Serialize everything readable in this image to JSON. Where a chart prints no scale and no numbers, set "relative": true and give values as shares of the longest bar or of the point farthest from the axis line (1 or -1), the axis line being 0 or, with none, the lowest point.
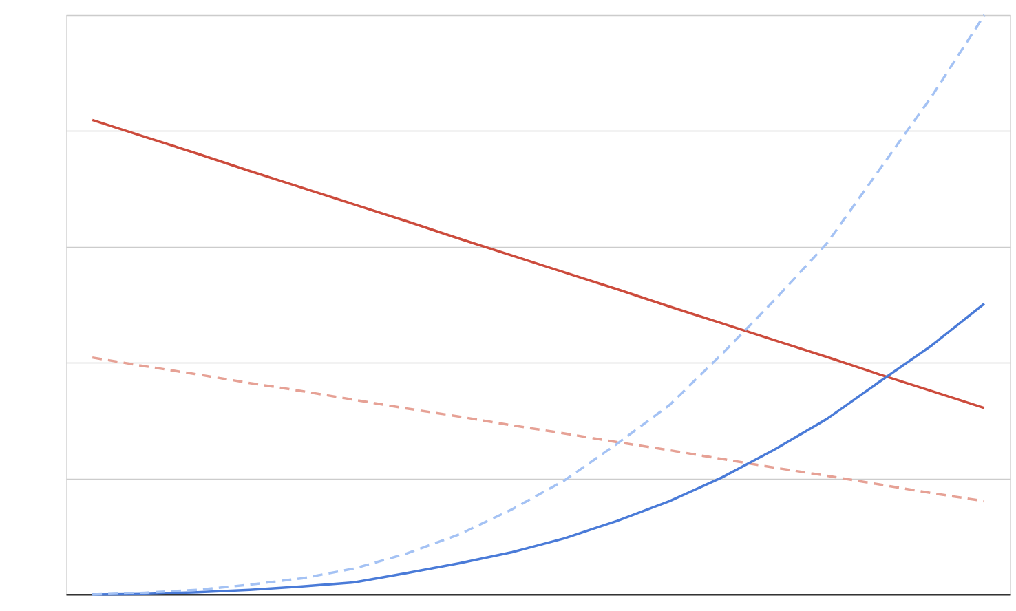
{
  "chart_data": {
    "type": "line",
    "relative": true,
    "grid": "y",
    "legend": false,
    "marker": "none",
    "categories": [
      null,
      null,
      null,
      null,
      null,
      null,
      null,
      null,
      null,
      null,
      null,
      null,
      null,
      null,
      null,
      null,
      null,
      null
    ],
    "series": [
      {
        "color": "#cc4b3c",
        "line_style": "solid",
        "values": [
          0.819,
          0.79,
          0.761,
          0.731,
          0.702,
          0.673,
          0.644,
          0.614,
          0.585,
          0.556,
          0.527,
          0.497,
          0.468,
          0.439,
          0.41,
          0.38,
          0.351,
          0.322
        ]
      },
      {
        "color": "#e6a195",
        "line_style": "dashed",
        "values": [
          0.409,
          0.394,
          0.38,
          0.365,
          0.351,
          0.336,
          0.321,
          0.307,
          0.292,
          0.278,
          0.263,
          0.249,
          0.234,
          0.219,
          0.205,
          0.19,
          0.175,
          0.161
        ]
      },
      {
        "color": "#4a7bd8",
        "line_style": "solid",
        "values": [
          0,
          0.001,
          0.004,
          0.008,
          0.014,
          0.021,
          0.037,
          0.054,
          0.073,
          0.097,
          0.127,
          0.161,
          0.202,
          0.25,
          0.303,
          0.367,
          0.43,
          0.502
        ]
      },
      {
        "color": "#a4c2f4",
        "line_style": "dashed",
        "values": [
          0,
          0.003,
          0.008,
          0.017,
          0.028,
          0.045,
          0.071,
          0.104,
          0.147,
          0.197,
          0.26,
          0.327,
          0.415,
          0.508,
          0.606,
          0.733,
          0.86,
          1
        ]
      }
    ]
  }
}
